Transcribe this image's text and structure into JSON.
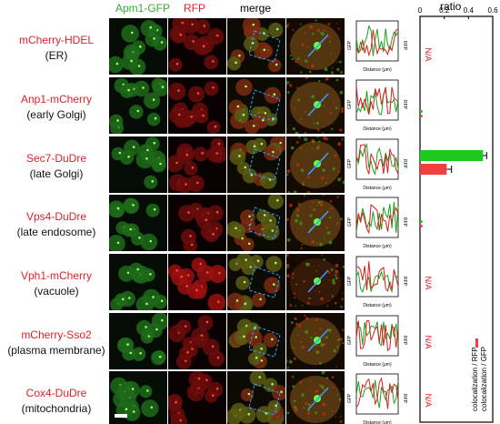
{
  "headers": {
    "gfp": "Apm1-GFP",
    "rfp": "RFP",
    "merge": "merge"
  },
  "rows": [
    {
      "marker": "mCherry-HDEL",
      "location": "(ER)",
      "na": "N/A"
    },
    {
      "marker": "Anp1-mCherry",
      "location": "(early Golgi)",
      "na": ""
    },
    {
      "marker": "Sec7-DuDre",
      "location": "(late Golgi)",
      "na": ""
    },
    {
      "marker": "Vps4-DuDre",
      "location": "(late endosome)",
      "na": ""
    },
    {
      "marker": "Vph1-mCherry",
      "location": "(vacuole)",
      "na": "N/A"
    },
    {
      "marker": "mCherry-Sso2",
      "location": "(plasma membrane)",
      "na": "N/A"
    },
    {
      "marker": "Cox4-DuDre",
      "location": "(mitochondria)",
      "na": "N/A"
    }
  ],
  "profile_plot": {
    "xlabel": "Distance (μm)",
    "ylabel_left": "GFP",
    "ylabel_right": "RFP"
  },
  "colors": {
    "green": "#2fae2f",
    "red": "#e0202a",
    "legend_green": "#1fc81f",
    "legend_red": "#f04040"
  },
  "chart_data": {
    "type": "bar",
    "orientation": "horizontal",
    "title": "ratio",
    "xlim": [
      0,
      0.6
    ],
    "xticks": [
      "0",
      "0.2",
      "0.4",
      "0.6"
    ],
    "categories": [
      "mCherry-HDEL",
      "Anp1-mCherry",
      "Sec7-DuDre",
      "Vps4-DuDre",
      "Vph1-mCherry",
      "mCherry-Sso2",
      "Cox4-DuDre"
    ],
    "series": [
      {
        "name": "colocalization / GFP",
        "values": [
          null,
          0.02,
          0.52,
          0.02,
          null,
          null,
          null
        ],
        "errors": [
          null,
          0.0,
          0.03,
          0.0,
          null,
          null,
          null
        ]
      },
      {
        "name": "colocalization / RFP",
        "values": [
          null,
          0.02,
          0.22,
          0.02,
          null,
          null,
          null
        ],
        "errors": [
          null,
          0.0,
          0.04,
          0.0,
          null,
          null,
          null
        ]
      }
    ],
    "na_label": "N/A"
  }
}
